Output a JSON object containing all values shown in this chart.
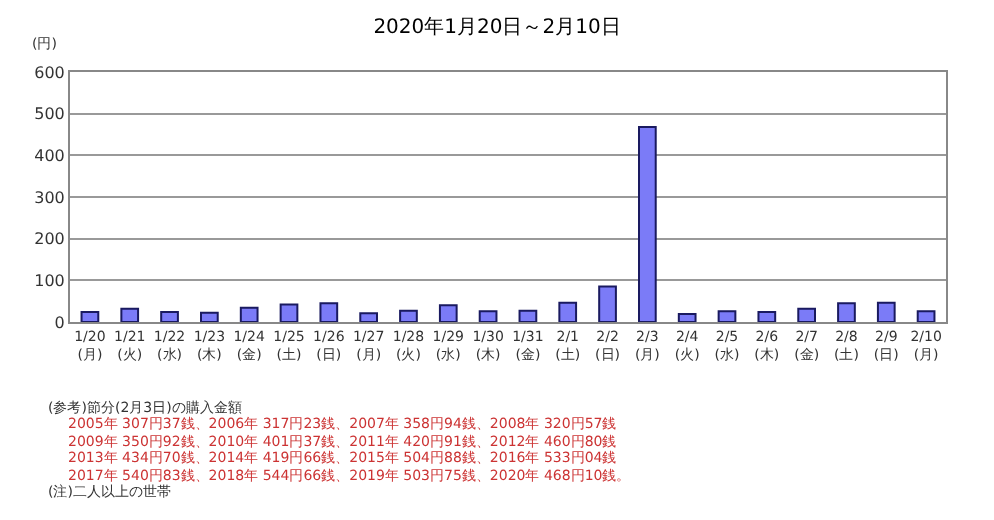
{
  "chart_data": {
    "type": "bar",
    "title": "2020年1月20日～2月10日",
    "ylabel": "(円)",
    "categories": [
      "1/20\n(月)",
      "1/21\n(火)",
      "1/22\n(水)",
      "1/23\n(木)",
      "1/24\n(金)",
      "1/25\n(土)",
      "1/26\n(日)",
      "1/27\n(月)",
      "1/28\n(火)",
      "1/29\n(水)",
      "1/30\n(木)",
      "1/31\n(金)",
      "2/1\n(土)",
      "2/2\n(日)",
      "2/3\n(月)",
      "2/4\n(火)",
      "2/5\n(水)",
      "2/6\n(木)",
      "2/7\n(金)",
      "2/8\n(土)",
      "2/9\n(日)",
      "2/10\n(月)"
    ],
    "values": [
      24,
      32,
      24,
      22,
      34,
      42,
      45,
      21,
      27,
      40,
      26,
      27,
      46,
      85,
      468,
      19,
      26,
      24,
      32,
      45,
      46,
      26
    ],
    "color": "#7b7bf7",
    "ylim": [
      0,
      600
    ],
    "yticks": [
      0,
      100,
      200,
      300,
      400,
      500,
      600
    ],
    "grid": "y",
    "annotations": [
      "(参考)節分(2月3日)の購入金額",
      "2005年 307円37銭、2006年 317円23銭、2007年 358円94銭、2008年 320円57銭",
      "2009年 350円92銭、2010年 401円37銭、2011年 420円91銭、2012年 460円80銭",
      "2013年 434円70銭、2014年 419円66銭、2015年 504円88銭、2016年 533円04銭",
      "2017年 540円83銭、2018年 544円66銭、2019年 503円75銭、2020年 468円10銭。",
      "(注)二人以上の世帯"
    ]
  }
}
